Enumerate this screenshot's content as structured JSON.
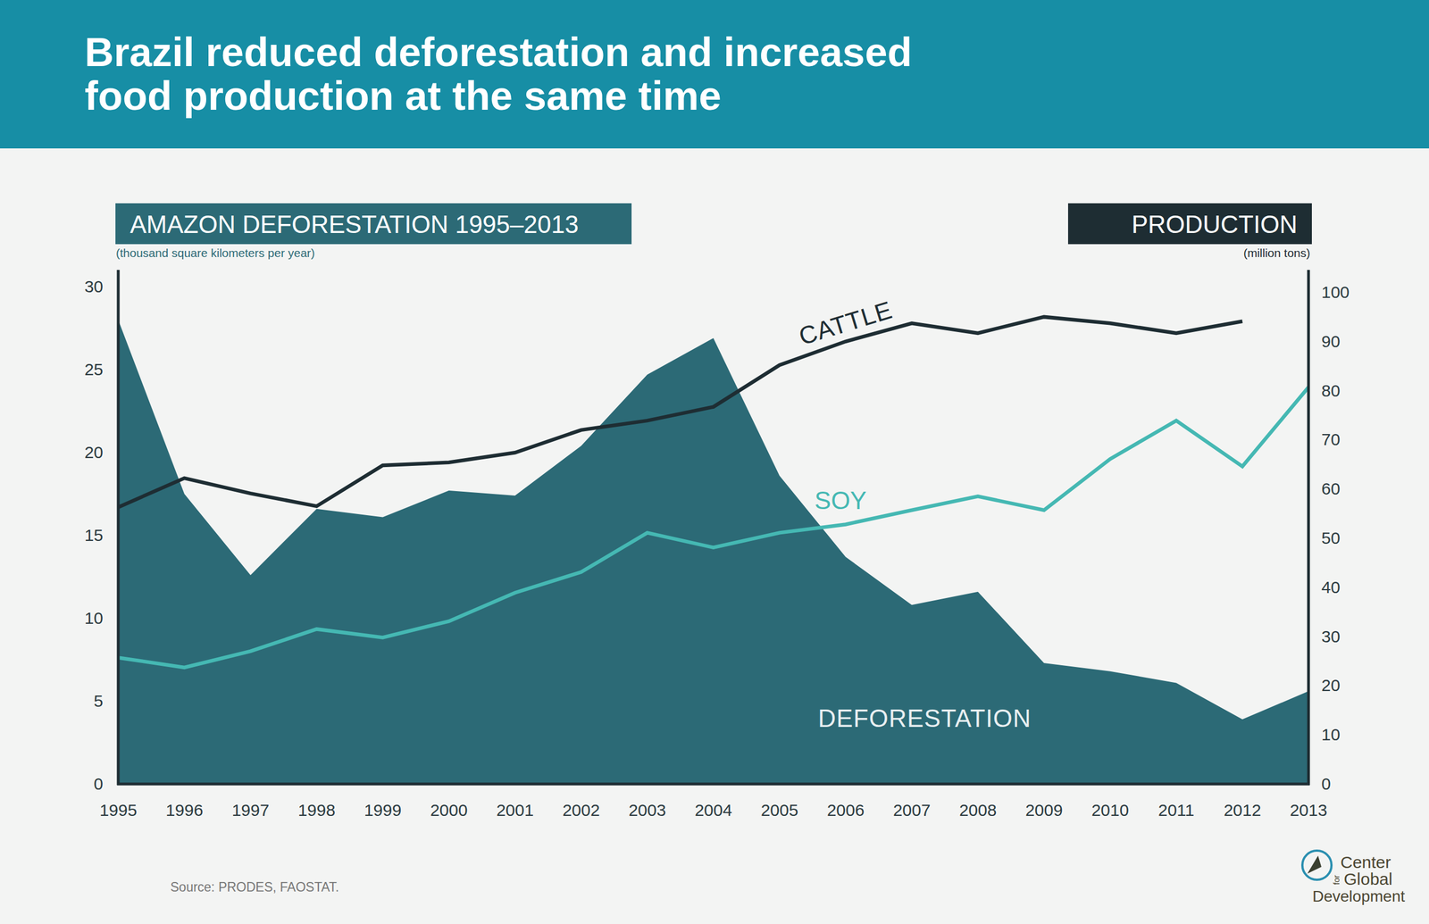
{
  "chart_data": {
    "type": "line",
    "title": "Brazil reduced deforestation and increased food production at the same time",
    "y_label": "AMAZON DEFORESTATION 1995–2013",
    "y_unit": "(thousand square kilometers per year)",
    "y2_label": "PRODUCTION",
    "y2_unit": "(million tons)",
    "source": "Source: PRODES, FAOSTAT.",
    "logo_text": [
      "Center",
      "for",
      "Global",
      "Development"
    ],
    "x": [
      1995,
      1996,
      1997,
      1998,
      1999,
      2000,
      2001,
      2002,
      2003,
      2004,
      2005,
      2006,
      2007,
      2008,
      2009,
      2010,
      2011,
      2012,
      2013
    ],
    "xlim": [
      1995,
      2013
    ],
    "xticks": [
      1995,
      1996,
      1997,
      1998,
      1999,
      2000,
      2001,
      2002,
      2003,
      2004,
      2005,
      2006,
      2007,
      2008,
      2009,
      2010,
      2011,
      2012,
      2013
    ],
    "ylim": [
      0,
      30
    ],
    "yticks": [
      0,
      5,
      10,
      15,
      20,
      25,
      30
    ],
    "y2lim": [
      0,
      100
    ],
    "y2ticks": [
      0,
      10,
      20,
      30,
      40,
      50,
      60,
      70,
      80,
      90,
      100
    ],
    "grid": false,
    "series": [
      {
        "name": "DEFORESTATION",
        "type": "area",
        "color": "#2c6a76",
        "values": [
          28.0,
          17.5,
          12.6,
          16.6,
          16.1,
          17.7,
          17.4,
          20.4,
          24.7,
          26.9,
          18.6,
          13.7,
          10.8,
          11.6,
          7.3,
          6.8,
          6.1,
          3.9,
          5.6
        ]
      },
      {
        "name": "CATTLE",
        "type": "line",
        "axis": "y2",
        "color": "#1e2d33",
        "values": [
          56.3,
          62.2,
          59.1,
          56.5,
          64.8,
          65.4,
          67.4,
          72.0,
          73.9,
          76.7,
          85.2,
          90.0,
          93.7,
          91.7,
          95.0,
          93.7,
          91.7,
          94.1,
          null
        ]
      },
      {
        "name": "SOY",
        "type": "line",
        "axis": "y2",
        "color": "#45b8b3",
        "values": [
          25.7,
          23.7,
          27.0,
          31.5,
          29.8,
          33.1,
          38.9,
          43.1,
          51.1,
          48.1,
          51.1,
          52.8,
          55.7,
          58.5,
          55.7,
          66.1,
          73.9,
          64.6,
          80.7
        ]
      }
    ]
  }
}
